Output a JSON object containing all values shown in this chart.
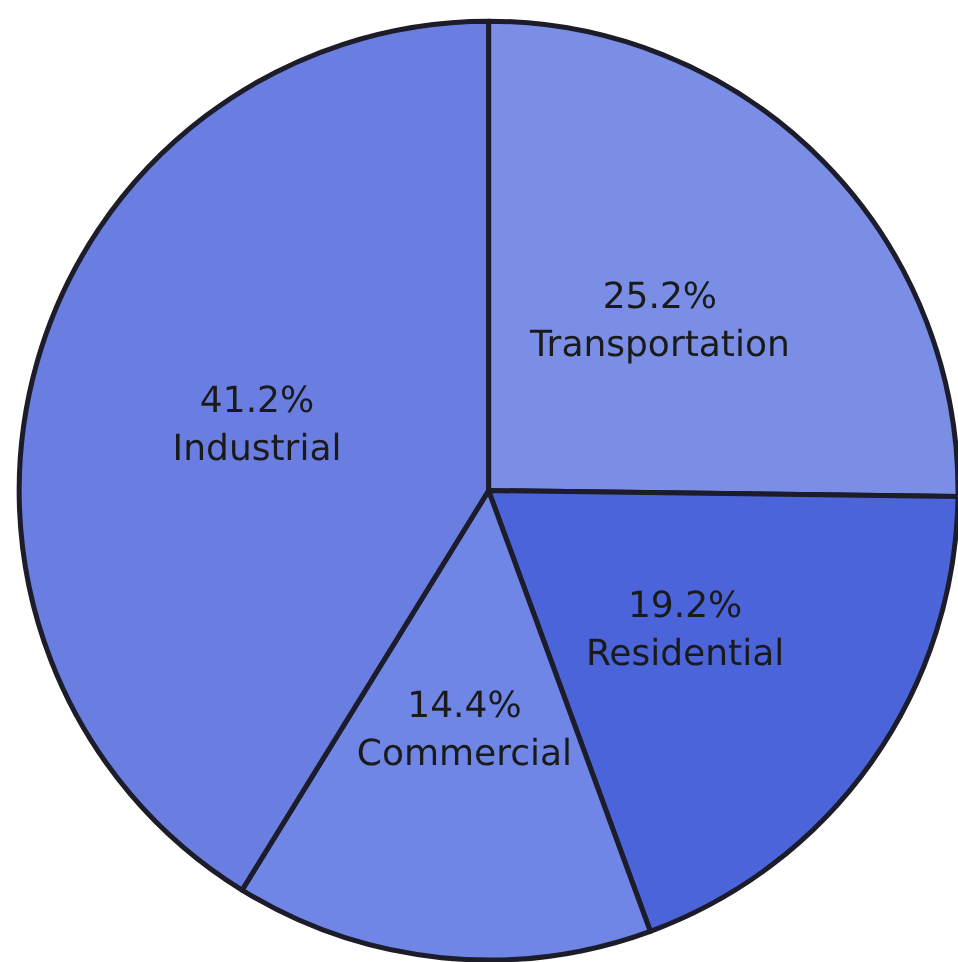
{
  "chart_data": {
    "type": "pie",
    "categories": [
      "Transportation",
      "Residential",
      "Commercial",
      "Industrial"
    ],
    "values": [
      25.2,
      19.2,
      14.4,
      41.2
    ],
    "colors": [
      "#7a8ee6",
      "#4c64d9",
      "#6f86e6",
      "#6a7ee1"
    ],
    "value_labels": [
      "25.2%",
      "19.2%",
      "14.4%",
      "41.2%"
    ],
    "legend": false
  }
}
